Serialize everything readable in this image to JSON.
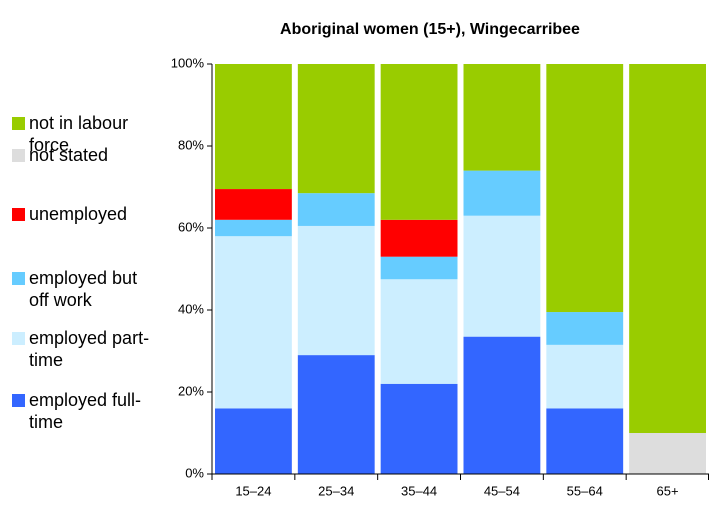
{
  "chart_data": {
    "type": "bar",
    "stacked": true,
    "title": "Aboriginal women (15+), Wingecarribee",
    "categories": [
      "15–24",
      "25–34",
      "35–44",
      "45–54",
      "55–64",
      "65+"
    ],
    "series": [
      {
        "name": "employed full-time",
        "color": "#3366ff",
        "values": [
          16,
          29,
          22,
          33.5,
          16,
          0
        ]
      },
      {
        "name": "employed part-time",
        "color": "#cceeff",
        "values": [
          42,
          31.5,
          25.5,
          29.5,
          15.5,
          0
        ]
      },
      {
        "name": "employed but off work",
        "color": "#66ccff",
        "values": [
          4,
          8,
          5.5,
          11,
          8,
          0
        ]
      },
      {
        "name": "unemployed",
        "color": "#ff0000",
        "values": [
          7.5,
          0,
          9,
          0,
          0,
          0
        ]
      },
      {
        "name": "not stated",
        "color": "#dddddd",
        "values": [
          0,
          0,
          0,
          0,
          0,
          10
        ]
      },
      {
        "name": "not in labour force",
        "color": "#99cc00",
        "values": [
          30.5,
          31.5,
          38,
          26,
          60.5,
          90
        ]
      }
    ],
    "ylim": [
      0,
      100
    ],
    "yticks": [
      {
        "value": 0,
        "label": "0%"
      },
      {
        "value": 20,
        "label": "20%"
      },
      {
        "value": 40,
        "label": "40%"
      },
      {
        "value": 60,
        "label": "60%"
      },
      {
        "value": 80,
        "label": "80%"
      },
      {
        "value": 100,
        "label": "100%"
      }
    ],
    "legend": "left"
  }
}
